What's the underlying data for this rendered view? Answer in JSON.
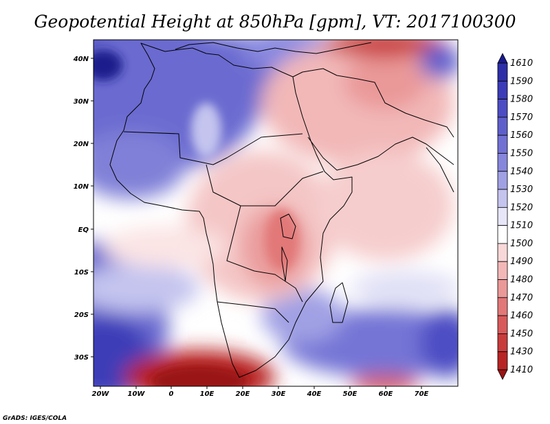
{
  "title": "Geopotential Height at 850hPa [gpm], VT: 2017100300",
  "credit": "GrADS: IGES/COLA",
  "lat_ticks": [
    "40N",
    "30N",
    "20N",
    "10N",
    "EQ",
    "10S",
    "20S",
    "30S"
  ],
  "lon_ticks": [
    "20W",
    "10W",
    "0",
    "10E",
    "20E",
    "30E",
    "40E",
    "50E",
    "60E",
    "70E"
  ],
  "colorbar": {
    "labels": [
      "1610",
      "1590",
      "1580",
      "1570",
      "1560",
      "1550",
      "1540",
      "1530",
      "1520",
      "1510",
      "1500",
      "1490",
      "1480",
      "1470",
      "1460",
      "1450",
      "1430",
      "1410"
    ],
    "colors": [
      "#1a1a8c",
      "#2e2ea8",
      "#3c3cb8",
      "#4d4dc4",
      "#5f5fcc",
      "#7171d4",
      "#8686dc",
      "#a0a0e4",
      "#c4c4ef",
      "#e6e6f8",
      "#ffffff",
      "#f8d8d8",
      "#f2b8b8",
      "#ea9898",
      "#e27878",
      "#d85a5a",
      "#c83c3c",
      "#b82424",
      "#9a1515"
    ]
  },
  "legend_colors": {
    "deep_blue": "#1a1a8c",
    "light_blue": "#c4c4ef",
    "white": "#ffffff",
    "light_red": "#f8d8d8",
    "deep_red": "#9a1515"
  }
}
